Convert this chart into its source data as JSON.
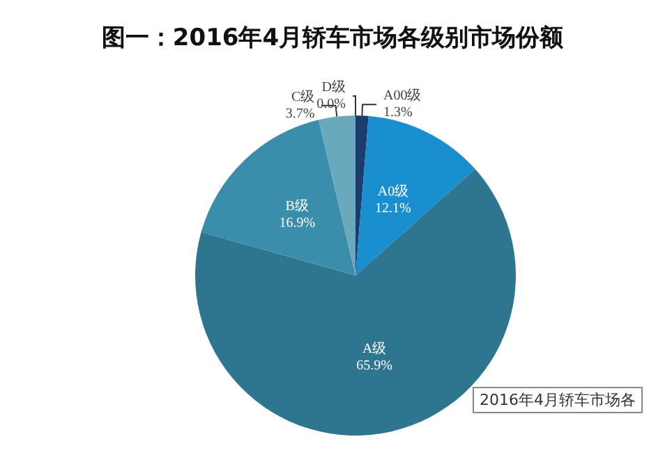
{
  "chart_data": {
    "type": "pie",
    "title": "图一：2016年4月轿车市场各级别市场份额",
    "categories": [
      "A00级",
      "A0级",
      "A级",
      "B级",
      "C级",
      "D级"
    ],
    "values": [
      1.3,
      12.1,
      65.9,
      16.9,
      3.7,
      0.0
    ],
    "value_labels": [
      "1.3%",
      "12.1%",
      "65.9%",
      "16.9%",
      "3.7%",
      "0.0%"
    ],
    "colors": [
      "#1b3d6e",
      "#1a8fd0",
      "#2e7590",
      "#3a8eab",
      "#6aa8bb",
      "#9cc3d0"
    ],
    "legend": false,
    "annotations": [
      "2016年4月轿车市场各"
    ]
  }
}
